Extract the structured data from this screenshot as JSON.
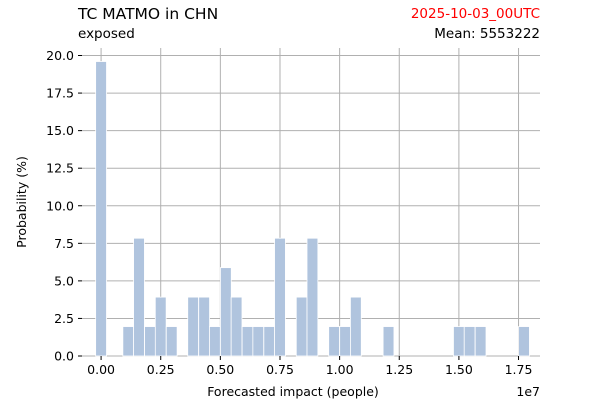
{
  "header": {
    "title": "TC MATMO in CHN",
    "subtitle": "exposed",
    "date": "2025-10-03_00UTC",
    "mean": "Mean: 5553222",
    "date_color": "#ff0000"
  },
  "chart_data": {
    "type": "bar",
    "xlabel": "Forecasted impact (people)",
    "ylabel": "Probability (%)",
    "x_scale_label": "1e7",
    "xlim": [
      -0.08,
      1.84
    ],
    "ylim": [
      0,
      20.5
    ],
    "xticks": [
      0.0,
      0.25,
      0.5,
      0.75,
      1.0,
      1.25,
      1.5,
      1.75
    ],
    "xtick_labels": [
      "0.00",
      "0.25",
      "0.50",
      "0.75",
      "1.00",
      "1.25",
      "1.50",
      "1.75"
    ],
    "yticks": [
      0.0,
      2.5,
      5.0,
      7.5,
      10.0,
      12.5,
      15.0,
      17.5,
      20.0
    ],
    "ytick_labels": [
      "0.0",
      "2.5",
      "5.0",
      "7.5",
      "10.0",
      "12.5",
      "15.0",
      "17.5",
      "20.0"
    ],
    "grid": true,
    "bar_width": 0.0455,
    "bar_color": "#b0c4de",
    "grid_color": "#b0b0b0",
    "x": [
      0.0,
      0.114,
      0.159,
      0.205,
      0.25,
      0.296,
      0.386,
      0.432,
      0.477,
      0.523,
      0.568,
      0.614,
      0.659,
      0.705,
      0.75,
      0.841,
      0.886,
      0.977,
      1.023,
      1.068,
      1.205,
      1.5,
      1.545,
      1.591,
      1.773
    ],
    "values": [
      19.6,
      1.96,
      7.84,
      1.96,
      3.92,
      1.96,
      3.92,
      3.92,
      1.96,
      5.88,
      3.92,
      1.96,
      1.96,
      1.96,
      7.84,
      3.92,
      7.84,
      1.96,
      1.96,
      3.92,
      1.96,
      1.96,
      1.96,
      1.96,
      1.96
    ]
  }
}
